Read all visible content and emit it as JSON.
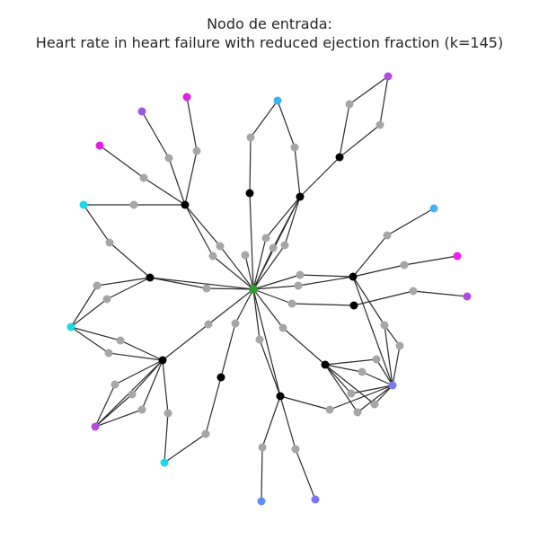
{
  "figure": {
    "title_line1": "Nodo de entrada:",
    "title_line2": "Heart rate in heart failure with reduced ejection fraction (k=145)"
  },
  "colors": {
    "entry": "#2ca02c",
    "hub": "#000000",
    "intermediate": "#a6a6a6",
    "edge": "#2b2b2b",
    "leaf_magenta": "#e01ee6",
    "leaf_violet": "#b44be0",
    "leaf_purple": "#9a5be0",
    "leaf_periwinkle": "#7b78f0",
    "leaf_cornflower": "#5f8ff0",
    "leaf_sky": "#3fb1f5",
    "leaf_cyan": "#1ad9ea",
    "leaf_pink": "#f01ef0"
  },
  "graph": {
    "node_count": 74,
    "edge_count": 86
  }
}
